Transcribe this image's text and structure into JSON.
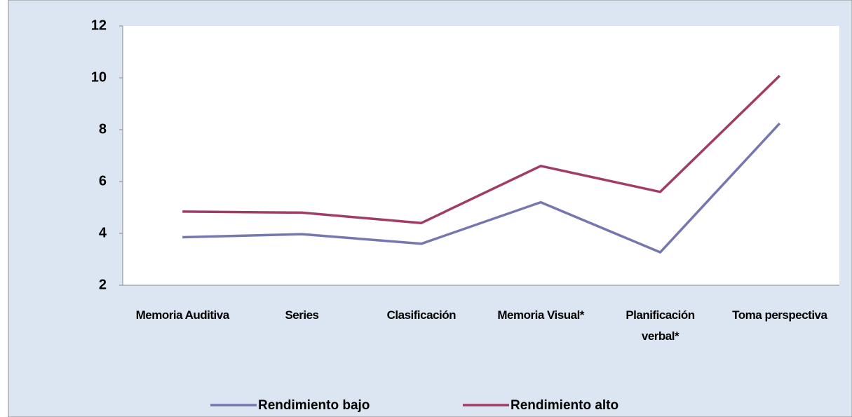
{
  "chart_data": {
    "type": "line",
    "categories": [
      "Memoria Auditiva",
      "Series",
      "Clasificación",
      "Memoria Visual*",
      "Planificación verbal*",
      "Toma perspectiva"
    ],
    "series": [
      {
        "name": "Rendimiento bajo",
        "color": "#7777b0",
        "values": [
          3.85,
          3.97,
          3.6,
          5.2,
          3.27,
          8.24
        ]
      },
      {
        "name": "Rendimiento alto",
        "color": "#a03c66",
        "values": [
          4.84,
          4.8,
          4.4,
          6.6,
          5.6,
          10.08
        ]
      }
    ],
    "ylim": [
      2,
      12
    ],
    "yticks": [
      2,
      4,
      6,
      8,
      10,
      12
    ],
    "grid": false,
    "legend": "bottom"
  }
}
